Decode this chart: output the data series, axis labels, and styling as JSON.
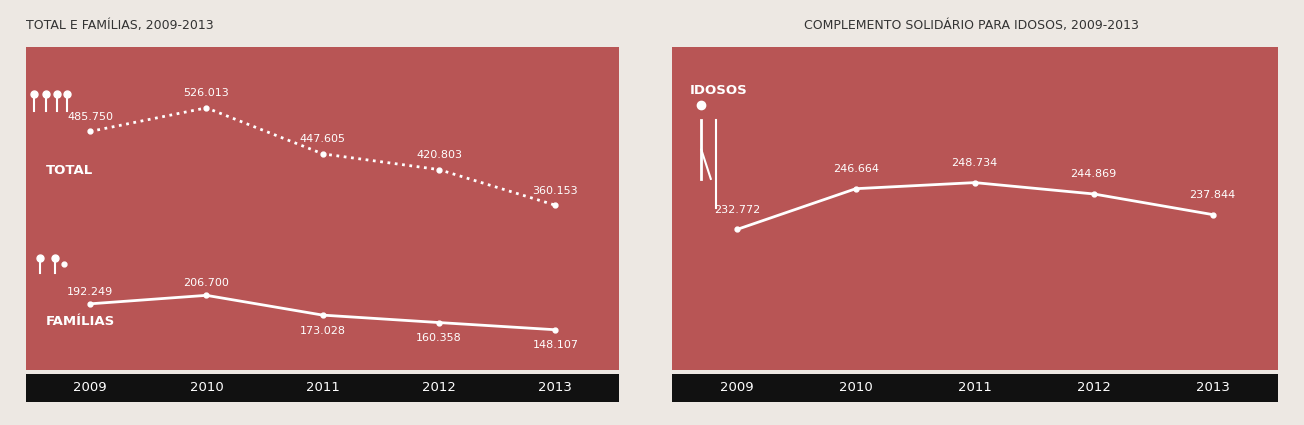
{
  "left_title": "TOTAL E FAMÍLIAS, 2009-2013",
  "right_title": "COMPLEMENTO SOLIDÁRIO PARA IDOSOS, 2009-2013",
  "years": [
    2009,
    2010,
    2011,
    2012,
    2013
  ],
  "total_values": [
    485750,
    526013,
    447605,
    420803,
    360153
  ],
  "familias_values": [
    192249,
    206700,
    173028,
    160358,
    148107
  ],
  "idosos_values": [
    232772,
    246664,
    248734,
    244869,
    237844
  ],
  "total_labels": [
    "485.750",
    "526.013",
    "447.605",
    "420.803",
    "360.153"
  ],
  "familias_labels": [
    "192.249",
    "206.700",
    "173.028",
    "160.358",
    "148.107"
  ],
  "idosos_labels": [
    "232.772",
    "246.664",
    "248.734",
    "244.869",
    "237.844"
  ],
  "bg_color": "#b85555",
  "line_color": "#ffffff",
  "text_color": "#ffffff",
  "axis_bg": "#111111",
  "axis_text_color": "#ffffff",
  "fig_bg": "#ede8e3",
  "label_total": "TOTAL",
  "label_familias": "FAMÍLIAS",
  "label_idosos": "IDOSOS",
  "title_color": "#333333"
}
